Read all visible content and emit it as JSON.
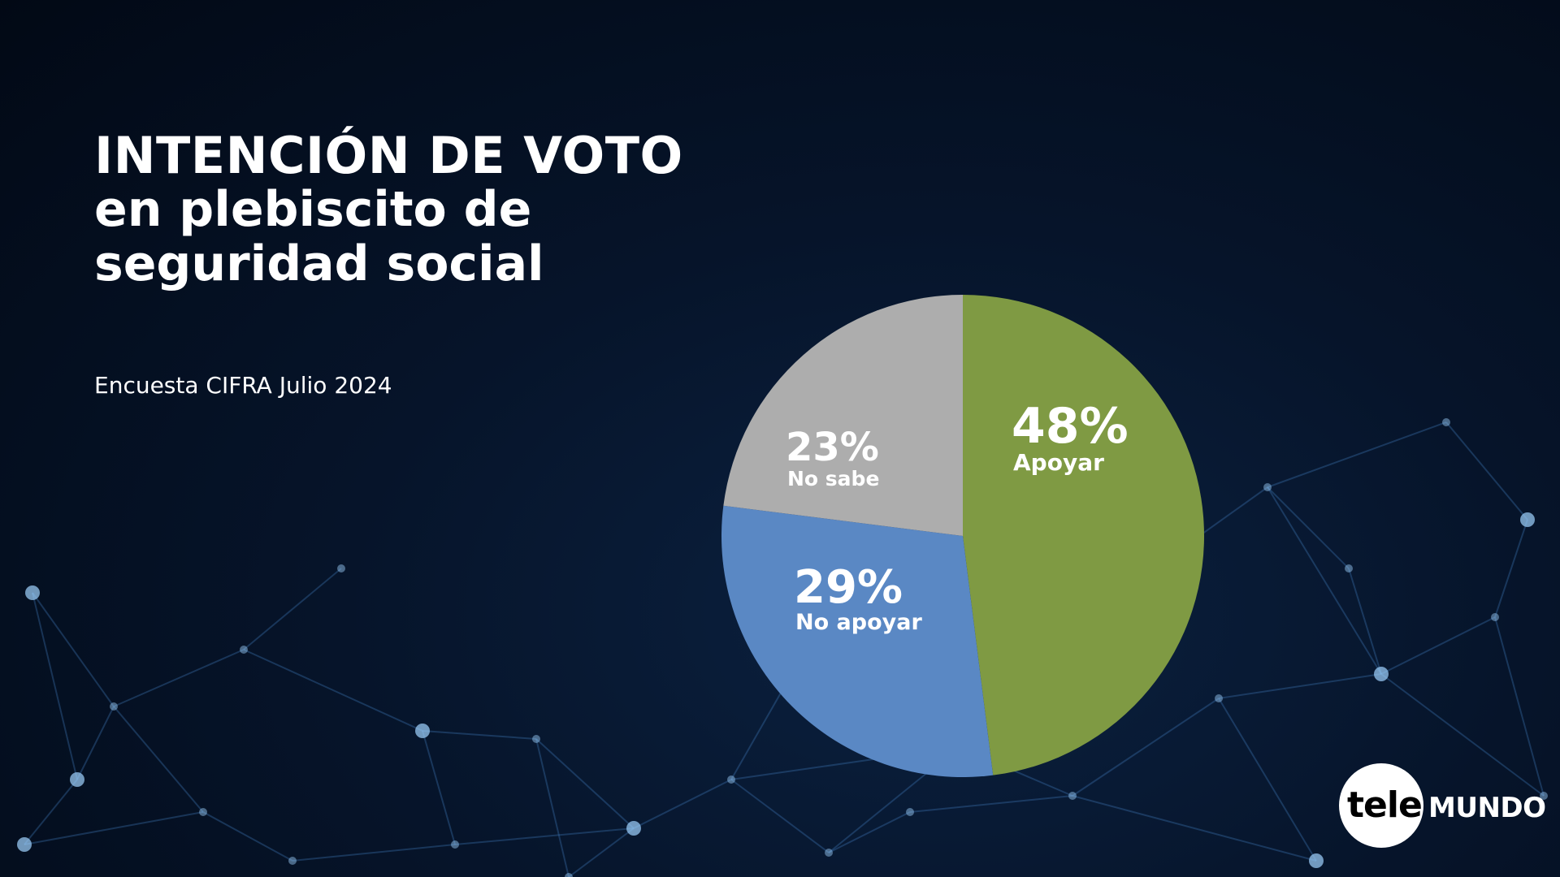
{
  "title": {
    "line1": "INTENCIÓN DE VOTO",
    "line2": "en plebiscito de",
    "line3": "seguridad social"
  },
  "subtitle": "Encuesta CIFRA Julio 2024",
  "logo": {
    "tele": "tele",
    "mundo": "MUNDO"
  },
  "chart_data": {
    "type": "pie",
    "title": "INTENCIÓN DE VOTO en plebiscito de seguridad social",
    "subtitle": "Encuesta CIFRA Julio 2024",
    "slices": [
      {
        "label": "Apoyar",
        "value": 48,
        "value_label": "48%",
        "color": "#7f9a43"
      },
      {
        "label": "No apoyar",
        "value": 29,
        "value_label": "29%",
        "color": "#5a88c4"
      },
      {
        "label": "No sabe",
        "value": 23,
        "value_label": "23%",
        "color": "#adadad"
      }
    ],
    "start_angle": "12 o'clock",
    "direction": "clockwise",
    "legend": "none (labels on slices)"
  }
}
